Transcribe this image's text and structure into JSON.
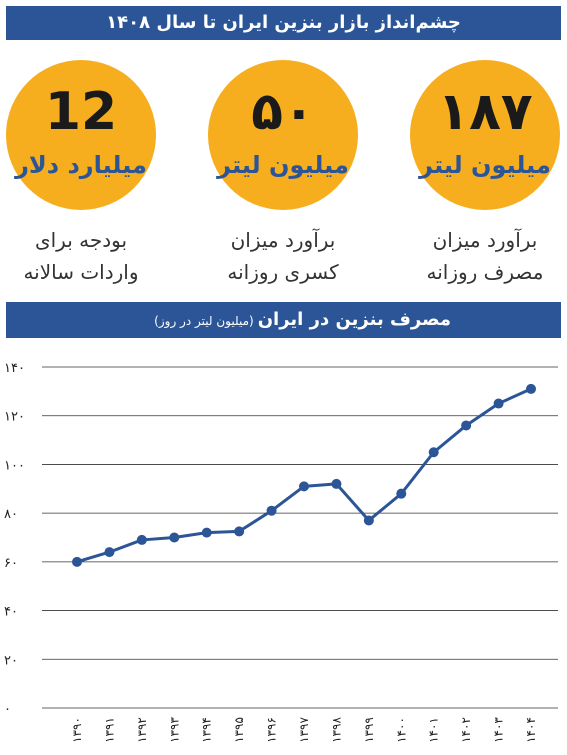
{
  "header": {
    "title": "چشم‌انداز بازار بنزین ایران تا سال ۱۴۰۸"
  },
  "stats": [
    {
      "value": "۱۸۷",
      "unit": "میلیون لیتر",
      "caption_line1": "برآورد میزان",
      "caption_line2": "مصرف روزانه"
    },
    {
      "value": "۵۰",
      "unit": "میلیون لیتر",
      "caption_line1": "برآورد میزان",
      "caption_line2": "کسری روزانه"
    },
    {
      "value": "12",
      "unit": "میلیارد دلار",
      "caption_line1": "بودجه برای",
      "caption_line2": "واردات سالانه"
    }
  ],
  "chart_header": {
    "title": "مصرف بنزین در ایران",
    "subtitle": "(میلیون لیتر در روز)"
  },
  "colors": {
    "banner": "#2b5597",
    "circle": "#f6ae1f",
    "line": "#2b5597",
    "grid": "#333333"
  },
  "chart_data": {
    "type": "line",
    "title": "مصرف بنزین در ایران",
    "ylabel": "(میلیون لیتر در روز)",
    "xlabel": "",
    "categories": [
      "۱۳۹۰",
      "۱۳۹۱",
      "۱۳۹۲",
      "۱۳۹۳",
      "۱۳۹۴",
      "۱۳۹۵",
      "۱۳۹۶",
      "۱۳۹۷",
      "۱۳۹۸",
      "۱۳۹۹",
      "۱۴۰۰",
      "۱۴۰۱",
      "۱۴۰۲",
      "۱۴۰۳",
      "۱۴۰۴"
    ],
    "values": [
      60,
      64,
      69,
      70,
      72,
      72.5,
      81,
      91,
      92,
      77,
      88,
      105,
      116,
      125,
      131
    ],
    "yticks": [
      0,
      20,
      40,
      60,
      80,
      100,
      120,
      140
    ],
    "ytick_labels": [
      "۰",
      "۲۰",
      "۴۰",
      "۶۰",
      "۸۰",
      "۱۰۰",
      "۱۲۰",
      "۱۴۰"
    ],
    "ylim": [
      0,
      140
    ],
    "grid": true
  }
}
